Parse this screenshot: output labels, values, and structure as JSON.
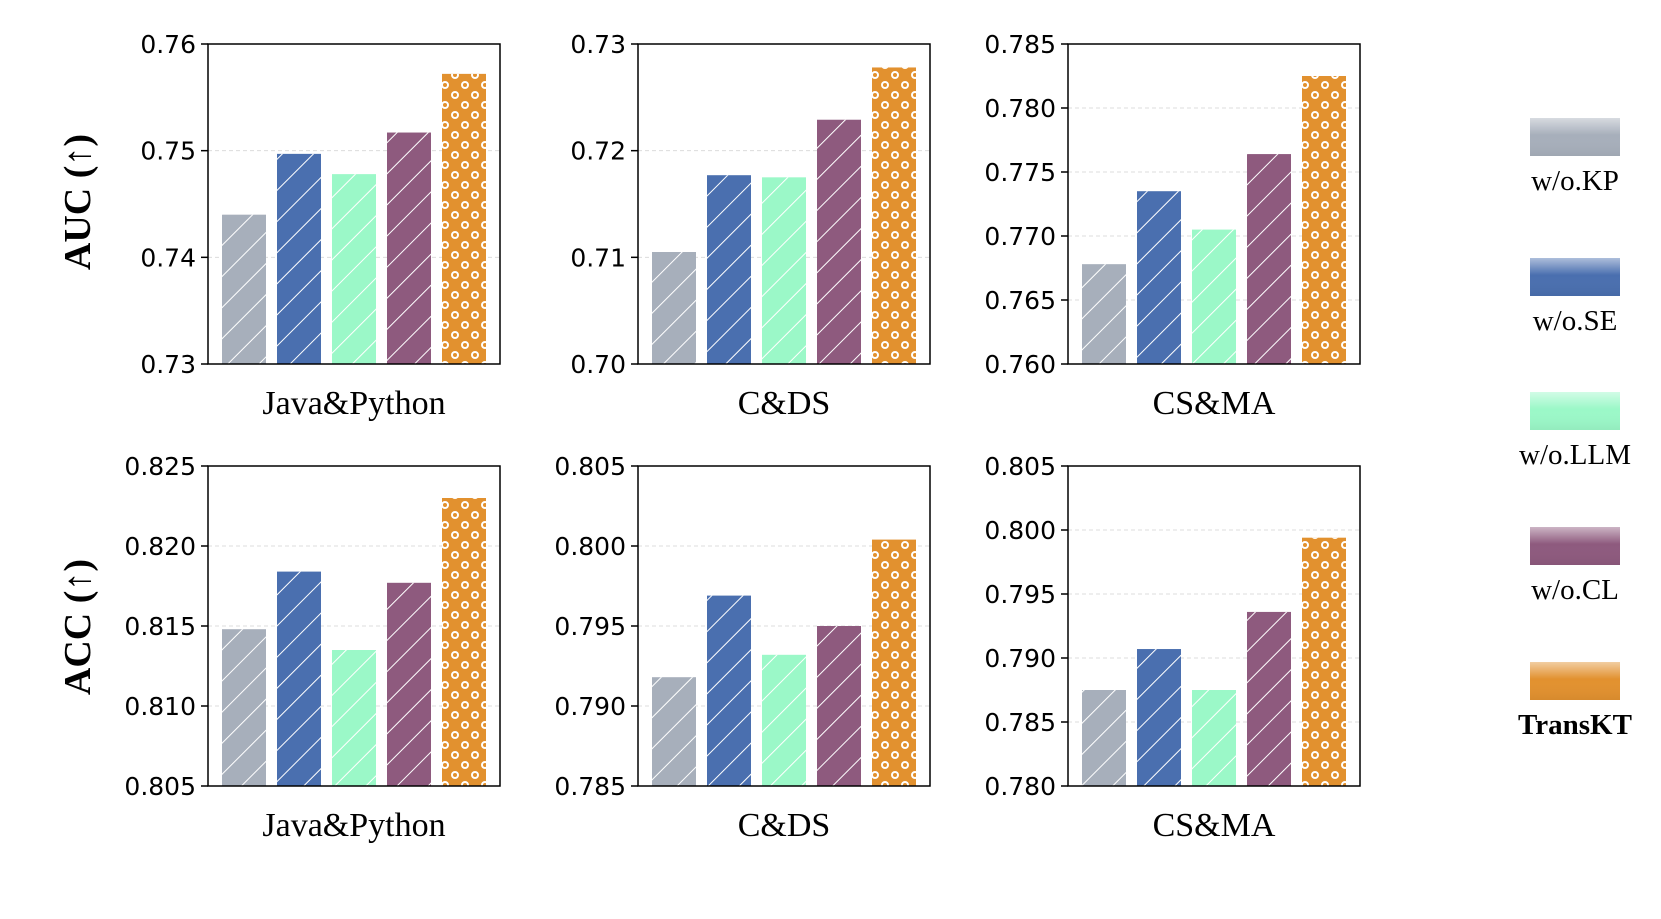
{
  "row_labels": {
    "auc": "AUC (↑)",
    "acc": "ACC (↑)"
  },
  "legend": [
    {
      "name": "w/o.KP",
      "color": "#a7afbb",
      "bold": false
    },
    {
      "name": "w/o.SE",
      "color": "#4a6faf",
      "bold": false
    },
    {
      "name": "w/o.LLM",
      "color": "#9bf8c8",
      "bold": false
    },
    {
      "name": "w/o.CL",
      "color": "#8e5a7e",
      "bold": false
    },
    {
      "name": "TransKT",
      "color": "#e2912f",
      "bold": true
    }
  ],
  "chart_data": [
    {
      "type": "bar",
      "metric": "AUC",
      "category": "Java&Python",
      "series": [
        "w/o.KP",
        "w/o.SE",
        "w/o.LLM",
        "w/o.CL",
        "TransKT"
      ],
      "values": [
        0.744,
        0.7497,
        0.7478,
        0.7517,
        0.7572
      ],
      "ylim": [
        0.73,
        0.76
      ],
      "yticks": [
        "0.73",
        "0.74",
        "0.75",
        "0.76"
      ]
    },
    {
      "type": "bar",
      "metric": "AUC",
      "category": "C&DS",
      "series": [
        "w/o.KP",
        "w/o.SE",
        "w/o.LLM",
        "w/o.CL",
        "TransKT"
      ],
      "values": [
        0.7105,
        0.7177,
        0.7175,
        0.7229,
        0.7278
      ],
      "ylim": [
        0.7,
        0.73
      ],
      "yticks": [
        "0.70",
        "0.71",
        "0.72",
        "0.73"
      ]
    },
    {
      "type": "bar",
      "metric": "AUC",
      "category": "CS&MA",
      "series": [
        "w/o.KP",
        "w/o.SE",
        "w/o.LLM",
        "w/o.CL",
        "TransKT"
      ],
      "values": [
        0.7678,
        0.7735,
        0.7705,
        0.7764,
        0.7825
      ],
      "ylim": [
        0.76,
        0.785
      ],
      "yticks": [
        "0.760",
        "0.765",
        "0.770",
        "0.775",
        "0.780",
        "0.785"
      ]
    },
    {
      "type": "bar",
      "metric": "ACC",
      "category": "Java&Python",
      "series": [
        "w/o.KP",
        "w/o.SE",
        "w/o.LLM",
        "w/o.CL",
        "TransKT"
      ],
      "values": [
        0.8148,
        0.8184,
        0.8135,
        0.8177,
        0.823
      ],
      "ylim": [
        0.805,
        0.825
      ],
      "yticks": [
        "0.805",
        "0.810",
        "0.815",
        "0.820",
        "0.825"
      ]
    },
    {
      "type": "bar",
      "metric": "ACC",
      "category": "C&DS",
      "series": [
        "w/o.KP",
        "w/o.SE",
        "w/o.LLM",
        "w/o.CL",
        "TransKT"
      ],
      "values": [
        0.7918,
        0.7969,
        0.7932,
        0.795,
        0.8004
      ],
      "ylim": [
        0.785,
        0.805
      ],
      "yticks": [
        "0.785",
        "0.790",
        "0.795",
        "0.800",
        "0.805"
      ]
    },
    {
      "type": "bar",
      "metric": "ACC",
      "category": "CS&MA",
      "series": [
        "w/o.KP",
        "w/o.SE",
        "w/o.LLM",
        "w/o.CL",
        "TransKT"
      ],
      "values": [
        0.7875,
        0.7907,
        0.7875,
        0.7936,
        0.7994
      ],
      "ylim": [
        0.78,
        0.805
      ],
      "yticks": [
        "0.780",
        "0.785",
        "0.790",
        "0.795",
        "0.800",
        "0.805"
      ]
    }
  ]
}
